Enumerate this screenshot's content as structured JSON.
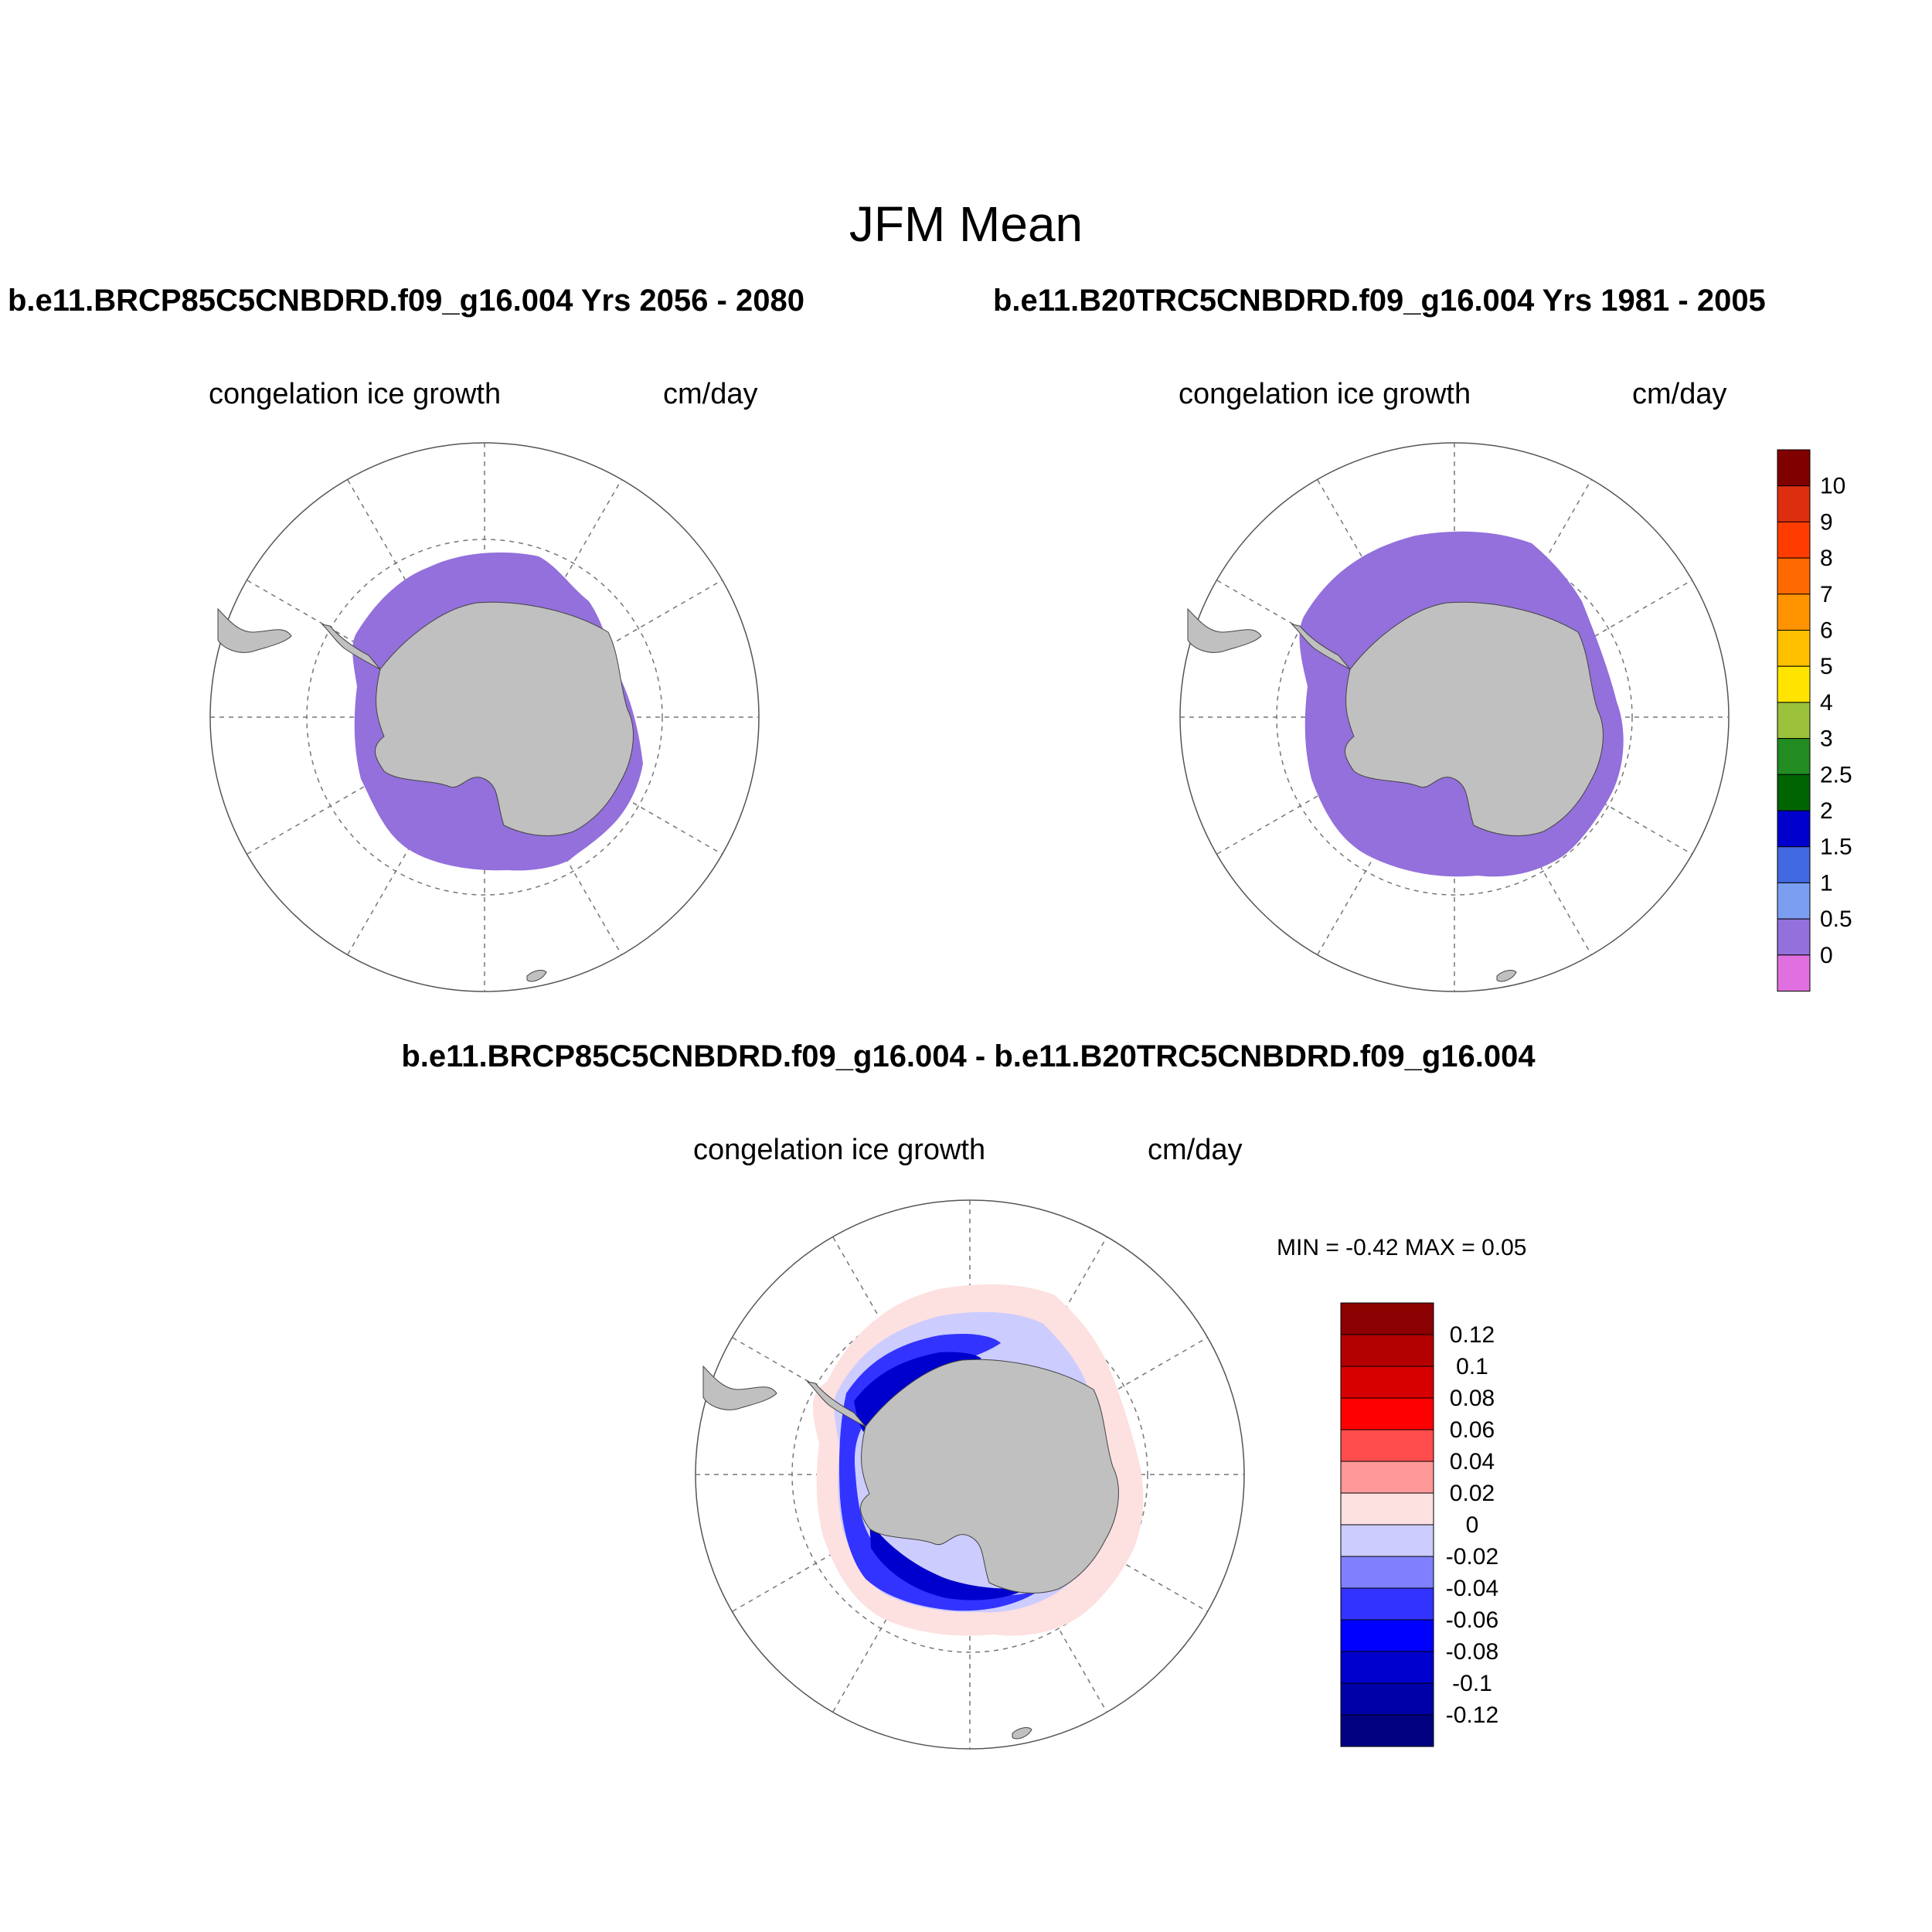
{
  "title": "JFM Mean",
  "panels": {
    "left": {
      "case": "b.e11.BRCP85C5CNBDRD.f09_g16.004  Yrs 2056 - 2080",
      "variable": "congelation ice growth",
      "units": "cm/day"
    },
    "right": {
      "case": "b.e11.B20TRC5CNBDRD.f09_g16.004  Yrs 1981 - 2005",
      "variable": "congelation ice growth",
      "units": "cm/day"
    },
    "diff": {
      "case": "b.e11.BRCP85C5CNBDRD.f09_g16.004 - b.e11.B20TRC5CNBDRD.f09_g16.004",
      "variable": "congelation ice growth",
      "units": "cm/day",
      "minmax": "MIN =  -0.42 MAX =   0.05"
    }
  },
  "colorbar_top": {
    "labels": [
      "10",
      "9",
      "8",
      "7",
      "6",
      "5",
      "4",
      "3",
      "2.5",
      "2",
      "1.5",
      "1",
      "0.5",
      "0"
    ],
    "colors": [
      "#800000",
      "#dd2f0f",
      "#ff3c00",
      "#ff6a00",
      "#ff9400",
      "#ffc000",
      "#ffe400",
      "#9bc23a",
      "#228b22",
      "#006400",
      "#0000cd",
      "#4169e1",
      "#7b9ef0",
      "#9370db",
      "#e070e0"
    ]
  },
  "colorbar_diff": {
    "labels": [
      "0.12",
      "0.1",
      "0.08",
      "0.06",
      "0.04",
      "0.02",
      "0",
      "-0.02",
      "-0.04",
      "-0.06",
      "-0.08",
      "-0.1",
      "-0.12"
    ],
    "colors": [
      "#8b0000",
      "#b30000",
      "#d60000",
      "#ff0000",
      "#ff4c4c",
      "#ff9999",
      "#fde0e0",
      "#ccccff",
      "#8080ff",
      "#3333ff",
      "#0000ff",
      "#0000cc",
      "#0000a8",
      "#000080"
    ]
  },
  "map_colors": {
    "land": "#c0c0c0",
    "ice_growth_0_0p5": "#9370db",
    "diff_pos_small": "#fde0e0",
    "diff_neg_small": "#ccccff",
    "diff_neg_mid": "#3333ff",
    "diff_neg_strong": "#0000cc"
  }
}
